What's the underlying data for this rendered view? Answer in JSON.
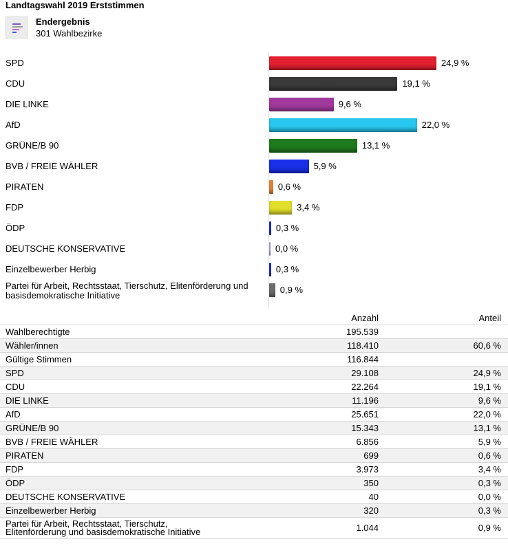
{
  "header": {
    "title": "Landtagswahl 2019 Erststimmen",
    "result_title": "Endergebnis",
    "result_subtitle": "301 Wahlbezirke"
  },
  "chart_data": {
    "type": "bar",
    "orientation": "horizontal",
    "categories": [
      "SPD",
      "CDU",
      "DIE LINKE",
      "AfD",
      "GRÜNE/B 90",
      "BVB / FREIE WÄHLER",
      "PIRATEN",
      "FDP",
      "ÖDP",
      "DEUTSCHE KONSERVATIVE",
      "Einzelbewerber Herbig",
      "Partei für Arbeit, Rechtsstaat, Tierschutz, Elitenförderung und basisdemokratische Initiative"
    ],
    "values": [
      24.9,
      19.1,
      9.6,
      22.0,
      13.1,
      5.9,
      0.6,
      3.4,
      0.3,
      0.0,
      0.3,
      0.9
    ],
    "value_labels": [
      "24,9 %",
      "19,1 %",
      "9,6 %",
      "22,0 %",
      "13,1 %",
      "5,9 %",
      "0,6 %",
      "3,4 %",
      "0,3 %",
      "0,0 %",
      "0,3 %",
      "0,9 %"
    ],
    "colors": [
      "#e3202f",
      "#3a3a3a",
      "#a23a9e",
      "#28c8f0",
      "#1e7a1e",
      "#1a2fe8",
      "#e8883a",
      "#e2df2a",
      "#1a2fe8",
      "#a8a8ff",
      "#1a2fe8",
      "#6e6e6e"
    ],
    "xlim": [
      0,
      25
    ]
  },
  "table": {
    "headers": {
      "name": "",
      "count": "Anzahl",
      "share": "Anteil"
    },
    "rows": [
      {
        "name": "Wahlberechtigte",
        "count": "195.539",
        "share": ""
      },
      {
        "name": "Wähler/innen",
        "count": "118.410",
        "share": "60,6 %"
      },
      {
        "name": "Gültige Stimmen",
        "count": "116.844",
        "share": ""
      },
      {
        "name": "SPD",
        "count": "29.108",
        "share": "24,9 %"
      },
      {
        "name": "CDU",
        "count": "22.264",
        "share": "19,1 %"
      },
      {
        "name": "DIE LINKE",
        "count": "11.196",
        "share": "9,6 %"
      },
      {
        "name": "AfD",
        "count": "25.651",
        "share": "22,0 %"
      },
      {
        "name": "GRÜNE/B 90",
        "count": "15.343",
        "share": "13,1 %"
      },
      {
        "name": "BVB / FREIE WÄHLER",
        "count": "6.856",
        "share": "5,9 %"
      },
      {
        "name": "PIRATEN",
        "count": "699",
        "share": "0,6 %"
      },
      {
        "name": "FDP",
        "count": "3.973",
        "share": "3,4 %"
      },
      {
        "name": "ÖDP",
        "count": "350",
        "share": "0,3 %"
      },
      {
        "name": "DEUTSCHE KONSERVATIVE",
        "count": "40",
        "share": "0,0 %"
      },
      {
        "name": "Einzelbewerber Herbig",
        "count": "320",
        "share": "0,3 %"
      },
      {
        "name": "Partei für Arbeit, Rechtsstaat, Tierschutz, Elitenförderung und basisdemokratische Initiative",
        "count": "1.044",
        "share": "0,9 %"
      }
    ]
  }
}
